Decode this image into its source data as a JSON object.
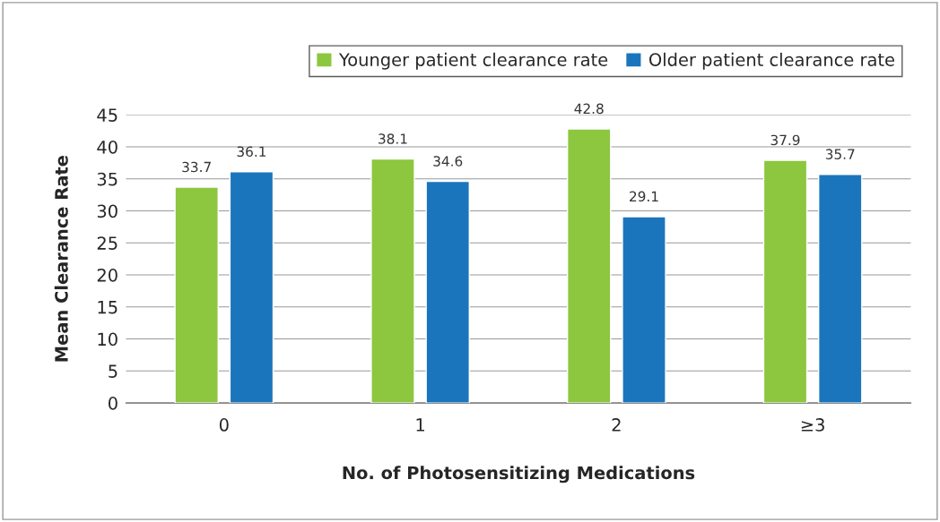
{
  "chart_data": {
    "type": "bar",
    "xlabel": "No. of Photosensitizing Medications",
    "ylabel": "Mean Clearance Rate",
    "categories": [
      "0",
      "1",
      "2",
      "≥3"
    ],
    "series": [
      {
        "name": "Younger patient clearance rate",
        "color": "#8dc63f",
        "values": [
          33.7,
          38.1,
          42.8,
          37.9
        ]
      },
      {
        "name": "Older patient clearance rate",
        "color": "#1b75bc",
        "values": [
          36.1,
          34.6,
          29.1,
          35.7
        ]
      }
    ],
    "ylim": [
      0,
      45
    ],
    "yticks": [
      0,
      5,
      10,
      15,
      20,
      25,
      30,
      35,
      40,
      45
    ],
    "grid": "y",
    "legend": "top right",
    "data_labels": true
  }
}
